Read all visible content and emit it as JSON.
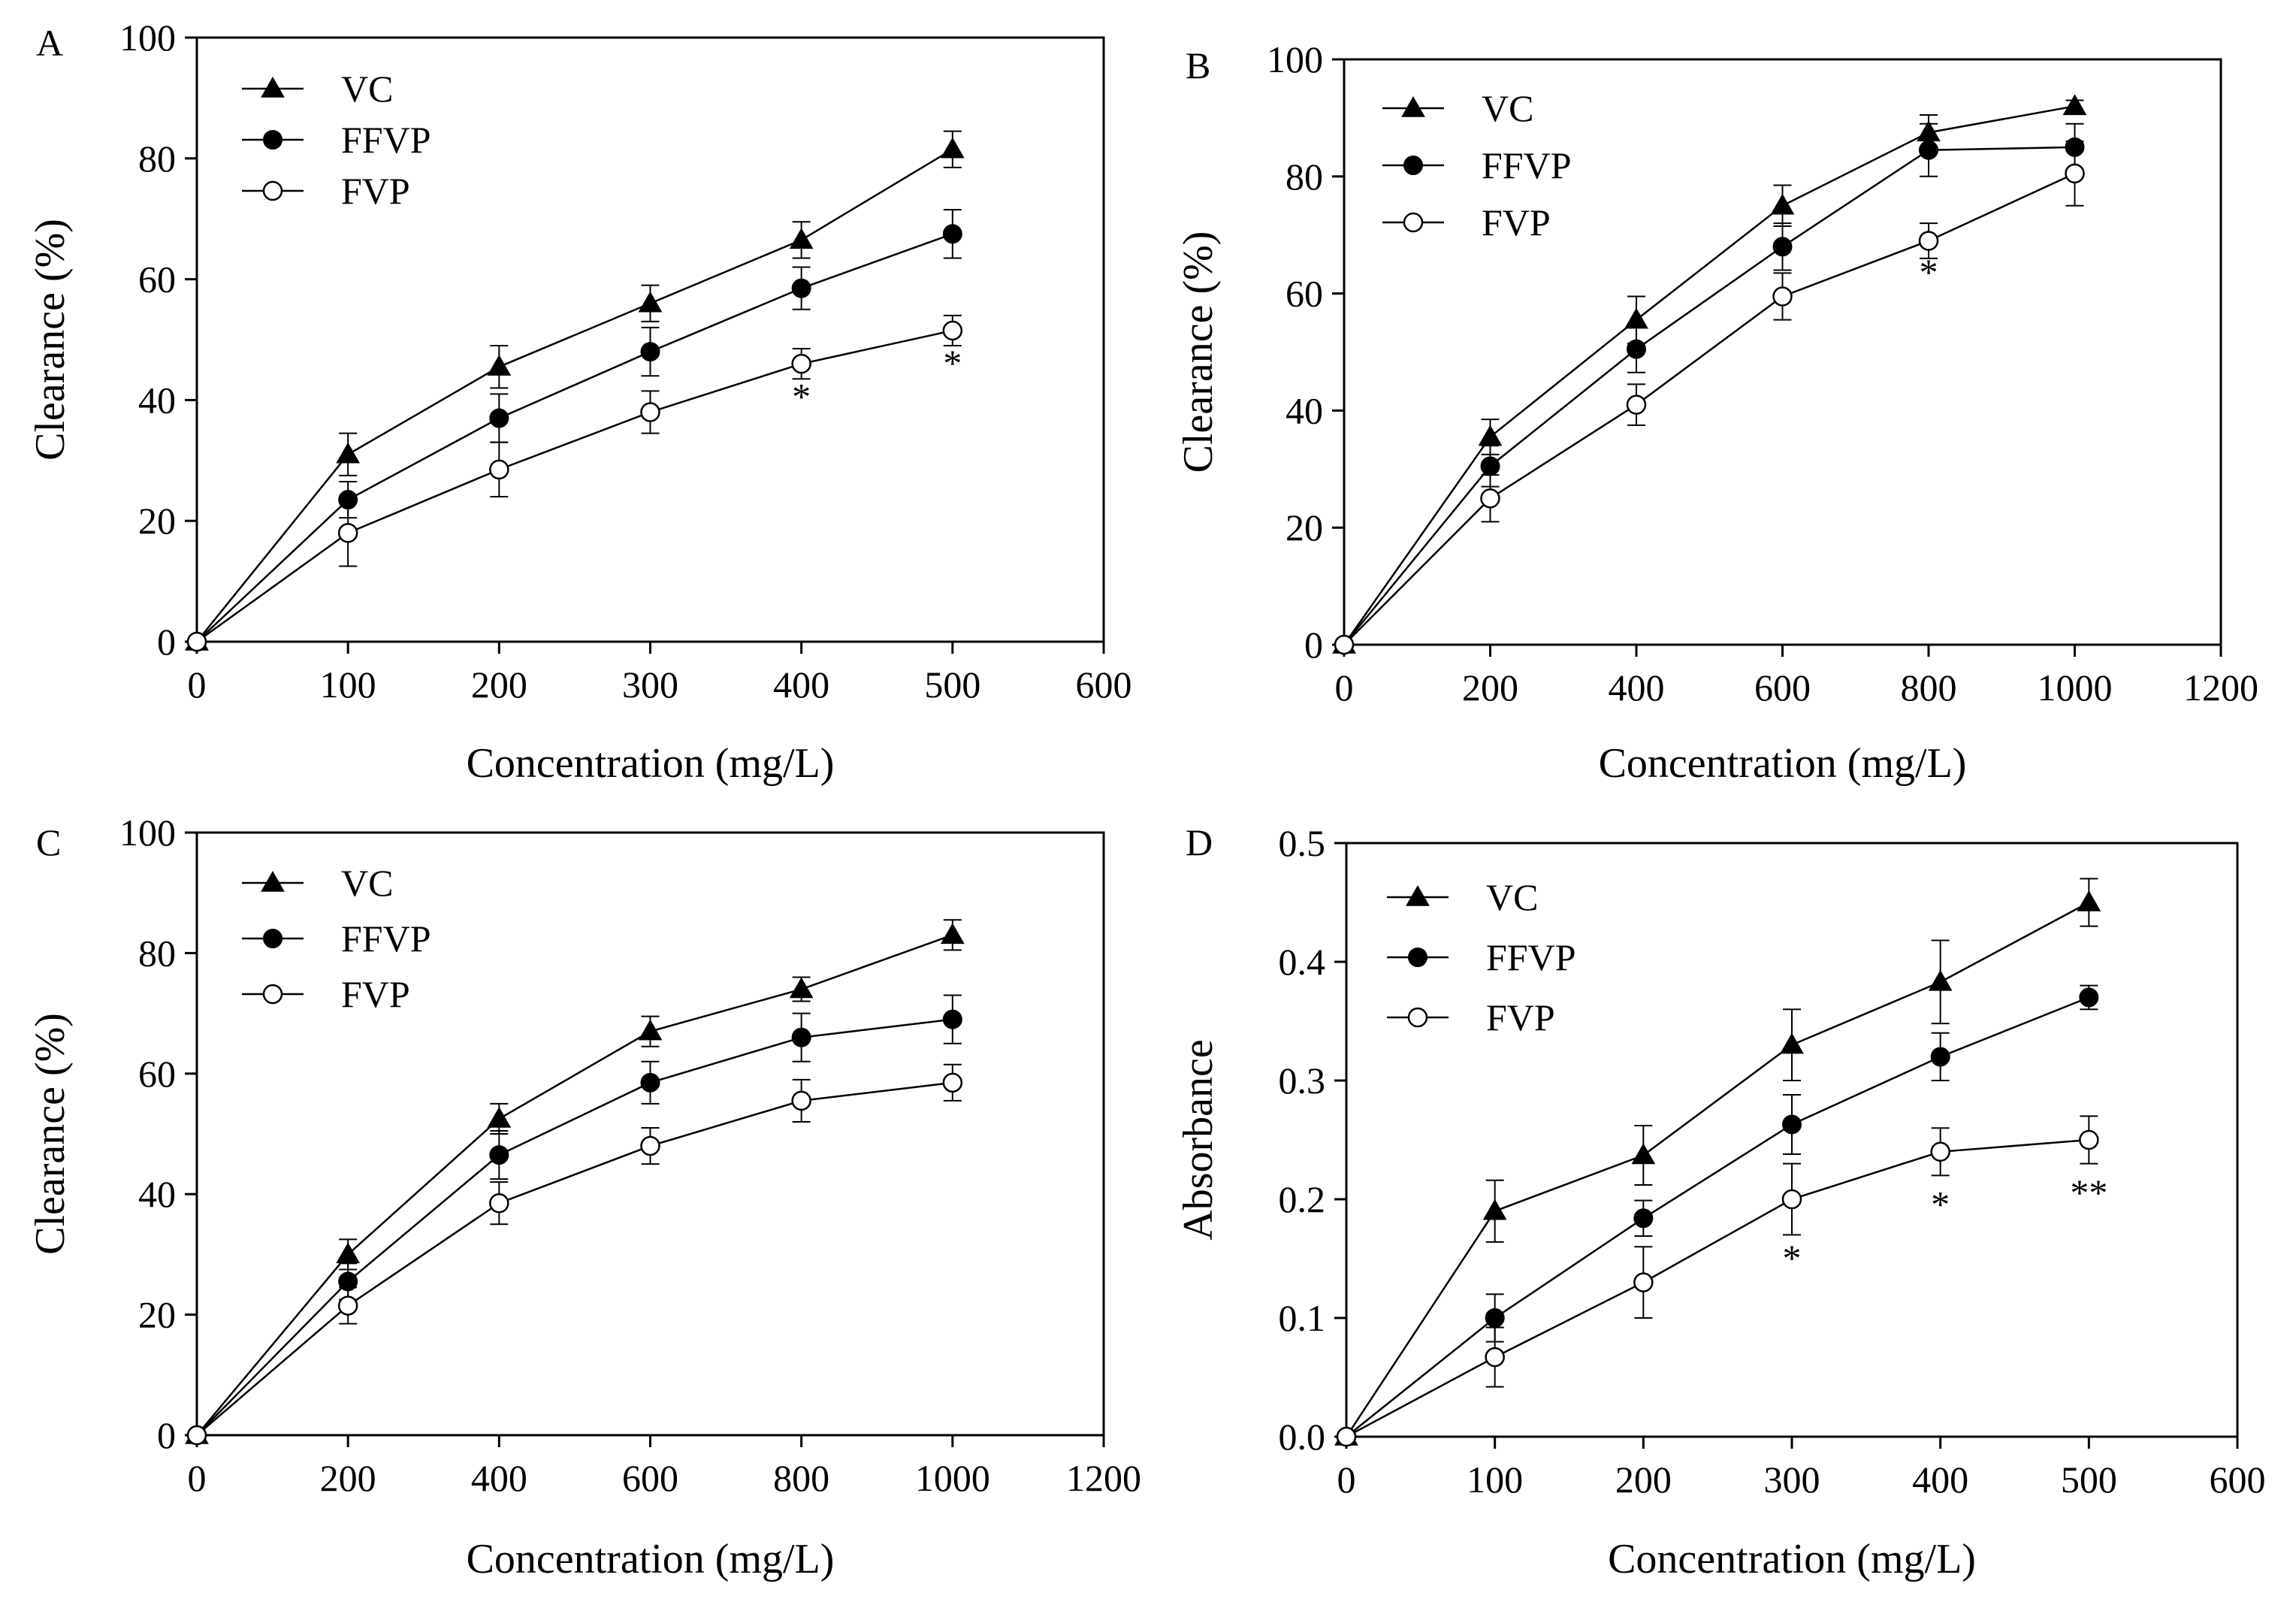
{
  "chart_data": [
    {
      "panel_label": "A",
      "type": "line",
      "xlabel": "Concentration (mg/L)",
      "ylabel": "Clearance (%)",
      "xlim": [
        0,
        600
      ],
      "ylim": [
        0,
        100
      ],
      "xticks": [
        "0",
        "100",
        "200",
        "300",
        "400",
        "500",
        "600"
      ],
      "yticks": [
        "0",
        "20",
        "40",
        "60",
        "80",
        "100"
      ],
      "legend_position": "top-left",
      "x": [
        0,
        100,
        200,
        300,
        400,
        500
      ],
      "series": [
        {
          "name": "VC",
          "marker": "filled-triangle",
          "values": [
            0,
            31,
            45.5,
            56,
            66.5,
            81.5
          ],
          "errors": [
            0,
            3.5,
            3.5,
            3,
            3,
            3
          ]
        },
        {
          "name": "FFVP",
          "marker": "filled-circle",
          "values": [
            0,
            23.5,
            37,
            48,
            58.5,
            67.5
          ],
          "errors": [
            0,
            3,
            4,
            4,
            3.5,
            4
          ]
        },
        {
          "name": "FVP",
          "marker": "open-circle",
          "values": [
            0,
            18,
            28.5,
            38,
            46,
            51.5
          ],
          "errors": [
            0,
            5.5,
            4.5,
            3.5,
            2.5,
            2.5
          ]
        }
      ],
      "annotations": [
        {
          "text": "*",
          "x": 400,
          "y": 38.5
        },
        {
          "text": "*",
          "x": 500,
          "y": 44
        }
      ]
    },
    {
      "panel_label": "B",
      "type": "line",
      "xlabel": "Concentration (mg/L)",
      "ylabel": "Clearance (%)",
      "xlim": [
        0,
        1200
      ],
      "ylim": [
        0,
        100
      ],
      "xticks": [
        "0",
        "200",
        "400",
        "600",
        "800",
        "1000",
        "1200"
      ],
      "yticks": [
        "0",
        "20",
        "40",
        "60",
        "80",
        "100"
      ],
      "legend_position": "top-left",
      "x": [
        0,
        200,
        400,
        600,
        800,
        1000
      ],
      "series": [
        {
          "name": "VC",
          "marker": "filled-triangle",
          "values": [
            0,
            35.5,
            55.5,
            75,
            87.5,
            92
          ],
          "errors": [
            0,
            3,
            4,
            3.5,
            3,
            1
          ]
        },
        {
          "name": "FFVP",
          "marker": "filled-circle",
          "values": [
            0,
            30.5,
            50.5,
            68,
            84.5,
            85
          ],
          "errors": [
            0,
            3.5,
            4,
            4,
            4.5,
            4
          ]
        },
        {
          "name": "FVP",
          "marker": "open-circle",
          "values": [
            0,
            25,
            41,
            59.5,
            69,
            80.5
          ],
          "errors": [
            0,
            4,
            3.5,
            4,
            3,
            5.5
          ]
        }
      ],
      "annotations": [
        {
          "text": "*",
          "x": 800,
          "y": 61.5
        }
      ]
    },
    {
      "panel_label": "C",
      "type": "line",
      "xlabel": "Concentration (mg/L)",
      "ylabel": "Clearance (%)",
      "xlim": [
        0,
        1200
      ],
      "ylim": [
        0,
        100
      ],
      "xticks": [
        "0",
        "200",
        "400",
        "600",
        "800",
        "1000",
        "1200"
      ],
      "yticks": [
        "0",
        "20",
        "40",
        "60",
        "80",
        "100"
      ],
      "legend_position": "top-left",
      "x": [
        0,
        200,
        400,
        600,
        800,
        1000
      ],
      "series": [
        {
          "name": "VC",
          "marker": "filled-triangle",
          "values": [
            0,
            30,
            52.5,
            67,
            74,
            83
          ],
          "errors": [
            0,
            2.5,
            2.5,
            2.5,
            2,
            2.5
          ]
        },
        {
          "name": "FFVP",
          "marker": "filled-circle",
          "values": [
            0,
            25.5,
            46.5,
            58.5,
            66,
            69
          ],
          "errors": [
            0,
            3,
            4,
            3.5,
            4,
            4
          ]
        },
        {
          "name": "FVP",
          "marker": "open-circle",
          "values": [
            0,
            21.5,
            38.5,
            48,
            55.5,
            58.5
          ],
          "errors": [
            0,
            3,
            3.5,
            3,
            3.5,
            3
          ]
        }
      ],
      "annotations": []
    },
    {
      "panel_label": "D",
      "type": "line",
      "xlabel": "Concentration (mg/L)",
      "ylabel": "Absorbance",
      "xlim": [
        0,
        600
      ],
      "ylim": [
        0,
        0.5
      ],
      "xticks": [
        "0",
        "100",
        "200",
        "300",
        "400",
        "500",
        "600"
      ],
      "yticks": [
        "0.0",
        "0.1",
        "0.2",
        "0.3",
        "0.4",
        "0.5"
      ],
      "legend_position": "top-left",
      "x": [
        0,
        100,
        200,
        300,
        400,
        500
      ],
      "series": [
        {
          "name": "VC",
          "marker": "filled-triangle",
          "values": [
            0,
            0.19,
            0.237,
            0.33,
            0.383,
            0.45
          ],
          "errors": [
            0,
            0.026,
            0.025,
            0.03,
            0.035,
            0.02
          ]
        },
        {
          "name": "FFVP",
          "marker": "filled-circle",
          "values": [
            0,
            0.1,
            0.184,
            0.263,
            0.32,
            0.37
          ],
          "errors": [
            0,
            0.02,
            0.015,
            0.025,
            0.02,
            0.01
          ]
        },
        {
          "name": "FVP",
          "marker": "open-circle",
          "values": [
            0,
            0.067,
            0.13,
            0.2,
            0.24,
            0.25
          ],
          "errors": [
            0,
            0.025,
            0.03,
            0.03,
            0.02,
            0.02
          ]
        }
      ],
      "annotations": [
        {
          "text": "*",
          "x": 300,
          "y": 0.14
        },
        {
          "text": "*",
          "x": 400,
          "y": 0.185
        },
        {
          "text": "**",
          "x": 500,
          "y": 0.195
        }
      ]
    }
  ]
}
